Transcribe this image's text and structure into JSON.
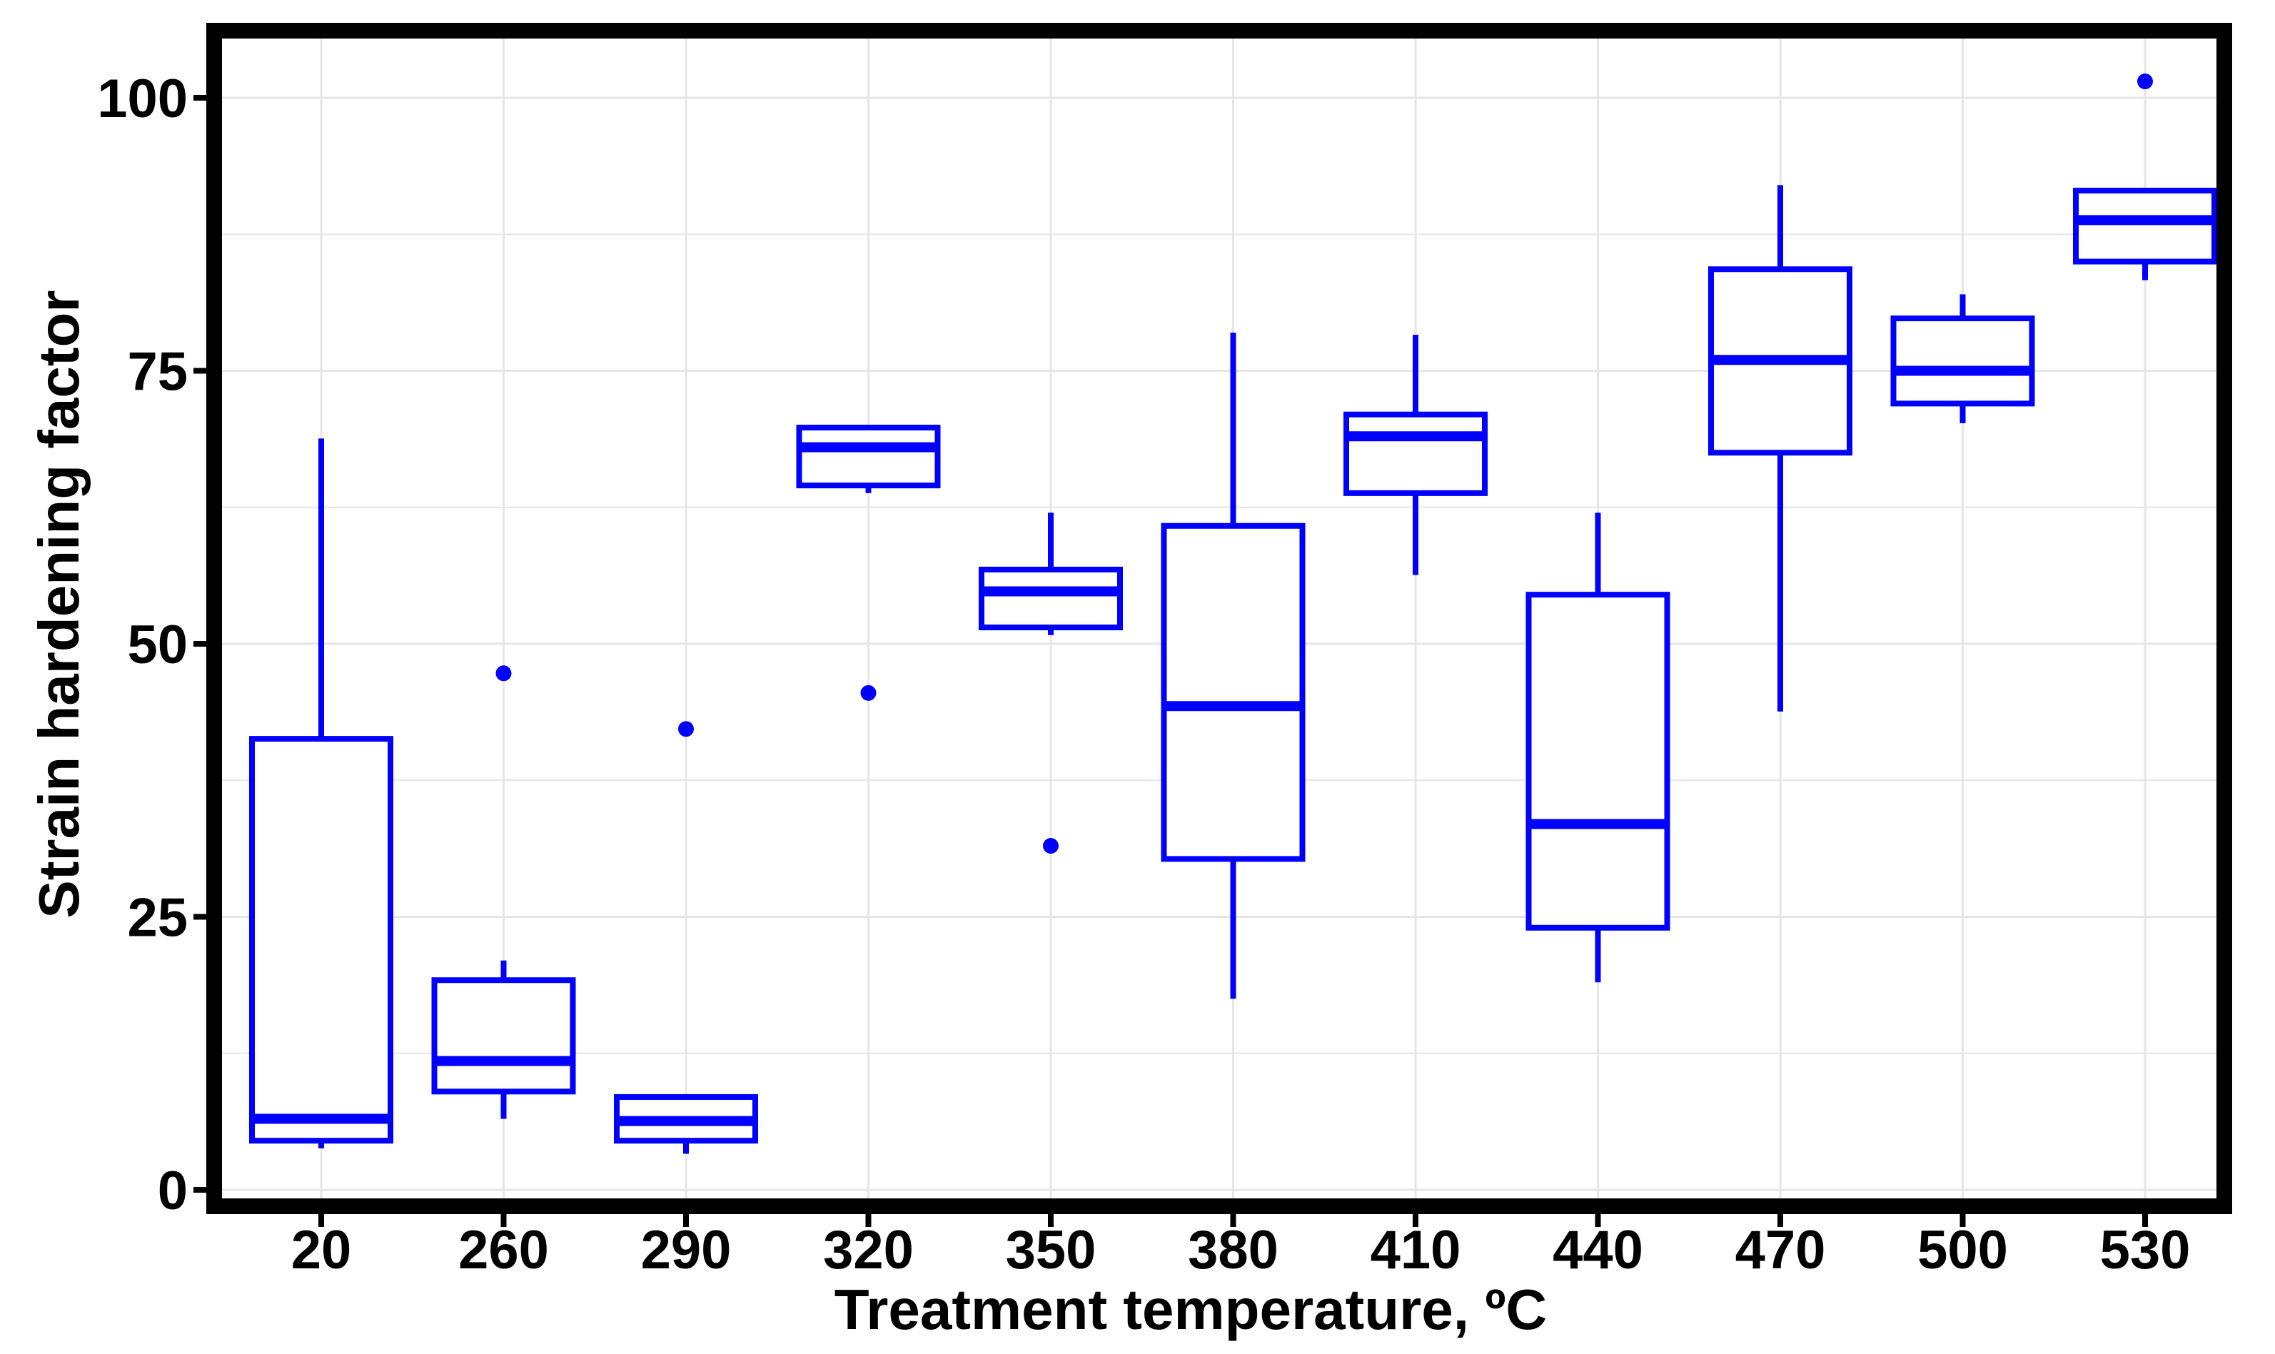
{
  "colors": {
    "box": "#0000ff",
    "frame": "#000000",
    "grid": "#e6e6e6",
    "background": "#ffffff"
  },
  "chart_data": {
    "type": "boxplot",
    "title": "",
    "xlabel": "Treatment temperature, ºC",
    "ylabel": "Strain hardening factor",
    "categories": [
      "20",
      "260",
      "290",
      "320",
      "350",
      "380",
      "410",
      "440",
      "470",
      "500",
      "530"
    ],
    "ylim": [
      0,
      103
    ],
    "yticks": [
      0,
      25,
      50,
      75,
      100
    ],
    "ytick_labels": [
      "0",
      "25",
      "50",
      "75",
      "100"
    ],
    "grid": true,
    "legend": "none",
    "boxes": [
      {
        "category": "20",
        "whisker_low": 3.8,
        "q1": 4.5,
        "median": 6.5,
        "q3": 41.3,
        "whisker_high": 68.8,
        "outliers": []
      },
      {
        "category": "260",
        "whisker_low": 6.5,
        "q1": 9.0,
        "median": 11.8,
        "q3": 19.2,
        "whisker_high": 21.0,
        "outliers": [
          47.3
        ]
      },
      {
        "category": "290",
        "whisker_low": 3.3,
        "q1": 4.5,
        "median": 6.3,
        "q3": 8.5,
        "whisker_high": 8.5,
        "outliers": [
          42.2
        ]
      },
      {
        "category": "320",
        "whisker_low": 63.8,
        "q1": 64.5,
        "median": 68.0,
        "q3": 69.8,
        "whisker_high": 69.8,
        "outliers": [
          45.5
        ]
      },
      {
        "category": "350",
        "whisker_low": 50.8,
        "q1": 51.5,
        "median": 54.8,
        "q3": 56.8,
        "whisker_high": 62.0,
        "outliers": [
          31.5
        ]
      },
      {
        "category": "380",
        "whisker_low": 17.5,
        "q1": 30.3,
        "median": 44.3,
        "q3": 60.8,
        "whisker_high": 78.5,
        "outliers": []
      },
      {
        "category": "410",
        "whisker_low": 56.3,
        "q1": 63.8,
        "median": 69.0,
        "q3": 71.0,
        "whisker_high": 78.3,
        "outliers": []
      },
      {
        "category": "440",
        "whisker_low": 19.0,
        "q1": 24.0,
        "median": 33.5,
        "q3": 54.5,
        "whisker_high": 62.0,
        "outliers": []
      },
      {
        "category": "470",
        "whisker_low": 43.8,
        "q1": 67.5,
        "median": 76.0,
        "q3": 84.3,
        "whisker_high": 92.0,
        "outliers": []
      },
      {
        "category": "500",
        "whisker_low": 70.2,
        "q1": 72.0,
        "median": 75.0,
        "q3": 79.8,
        "whisker_high": 82.0,
        "outliers": []
      },
      {
        "category": "530",
        "whisker_low": 83.3,
        "q1": 85.0,
        "median": 88.8,
        "q3": 91.5,
        "whisker_high": 91.5,
        "outliers": [
          101.5
        ]
      }
    ]
  }
}
